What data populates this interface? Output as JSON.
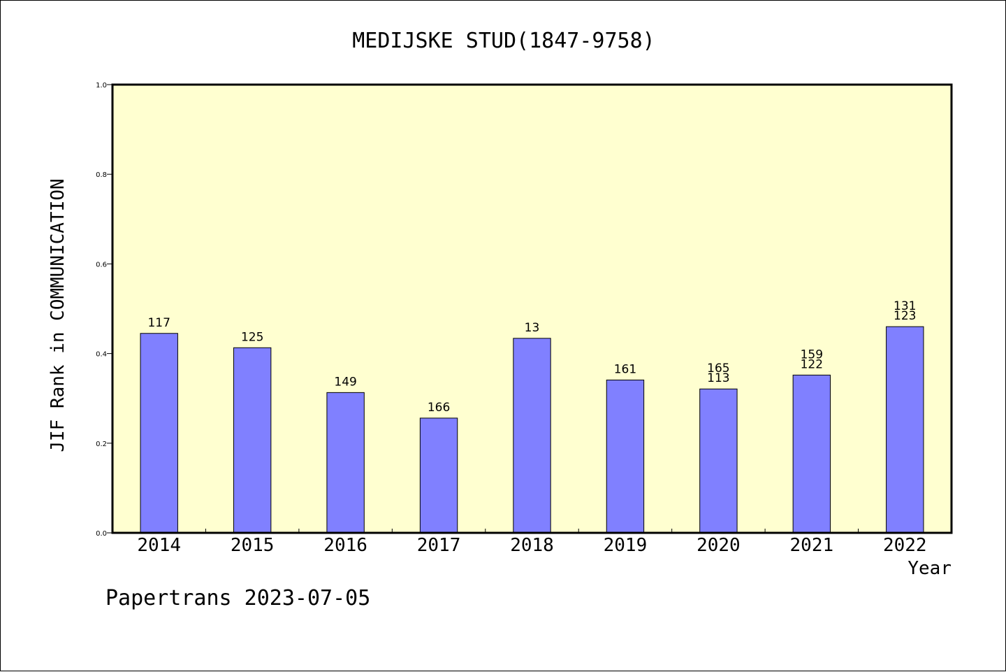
{
  "chart_data": {
    "type": "bar",
    "title": "MEDIJSKE STUD(1847-9758)",
    "xlabel": "Year",
    "ylabel": "JIF Rank in COMMUNICATION",
    "ylim": [
      0.0,
      1.0
    ],
    "yticks": [
      "0.0",
      "0.2",
      "0.4",
      "0.6",
      "0.8",
      "1.0"
    ],
    "ytick_values": [
      0.0,
      0.2,
      0.4,
      0.6,
      0.8,
      1.0
    ],
    "categories": [
      "2014",
      "2015",
      "2016",
      "2017",
      "2018",
      "2019",
      "2020",
      "2021",
      "2022"
    ],
    "values": [
      0.445,
      0.413,
      0.313,
      0.256,
      0.434,
      0.341,
      0.321,
      0.352,
      0.46
    ],
    "bar_labels": [
      [
        "117"
      ],
      [
        "125"
      ],
      [
        "149"
      ],
      [
        "166"
      ],
      [
        "13"
      ],
      [
        "161"
      ],
      [
        "165",
        "113"
      ],
      [
        "159",
        "122"
      ],
      [
        "131",
        "123"
      ]
    ],
    "grid": false,
    "colors": {
      "bar": "#8080ff",
      "plot_background": "#ffffd0",
      "axes": "#000000"
    }
  },
  "footer": {
    "credit": "Papertrans 2023-07-05"
  }
}
